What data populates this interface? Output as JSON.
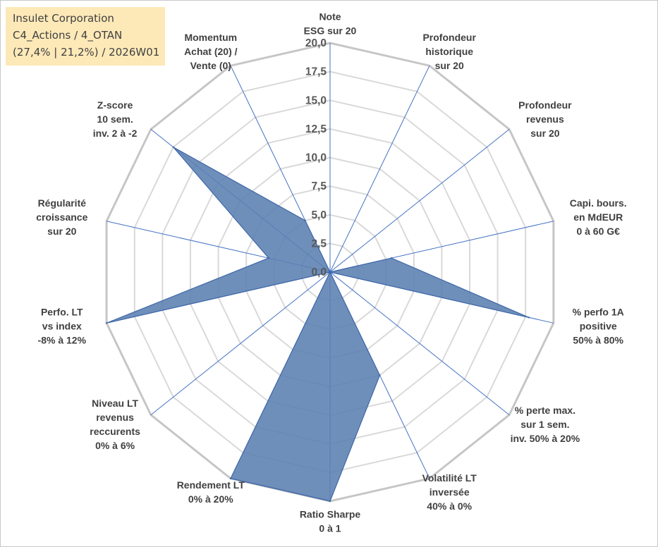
{
  "info_box": {
    "company": "Insulet Corporation",
    "portfolio": "C4_Actions / 4_OTAN",
    "details": "(27,4% | 21,2%) / 2026W01"
  },
  "chart_data": {
    "type": "radar",
    "title": "Insulet Corporation",
    "rmin": 0,
    "rmax": 20,
    "tick_step": 2.5,
    "tick_labels": [
      "0,0",
      "2,5",
      "5,0",
      "7,5",
      "10,0",
      "12,5",
      "15,0",
      "17,5",
      "20,0"
    ],
    "axes": [
      {
        "label": [
          "Note",
          "ESG sur 20"
        ],
        "value": 0
      },
      {
        "label": [
          "Profondeur",
          "historique",
          "sur 20"
        ],
        "value": 0
      },
      {
        "label": [
          "Profondeur",
          "revenus",
          "sur 20"
        ],
        "value": 0
      },
      {
        "label": [
          "Capi. bours.",
          "en MdEUR",
          "0 à 60 G€"
        ],
        "value": 5.5
      },
      {
        "label": [
          "% perfo 1A",
          "positive",
          "50% à 80%"
        ],
        "value": 17.8
      },
      {
        "label": [
          "% perte max.",
          "sur 1 sem.",
          "inv. 50% à 20%"
        ],
        "value": 0
      },
      {
        "label": [
          "Volatilité LT",
          "inversée",
          "40% à 0%"
        ],
        "value": 10.0
      },
      {
        "label": [
          "Ratio Sharpe",
          "0 à 1"
        ],
        "value": 20.0
      },
      {
        "label": [
          "Rendement LT",
          "0% à 20%"
        ],
        "value": 20.0
      },
      {
        "label": [
          "Niveau LT",
          "revenus",
          "reccurents",
          "0% à 6%"
        ],
        "value": 0
      },
      {
        "label": [
          "Perfo. LT",
          "vs index",
          "-8% à 12%"
        ],
        "value": 20.0
      },
      {
        "label": [
          "Régularité",
          "croissance",
          "sur 20"
        ],
        "value": 5.5
      },
      {
        "label": [
          "Z-score",
          "10 sem.",
          "inv. 2 à -2"
        ],
        "value": 17.5
      },
      {
        "label": [
          "Momentum",
          "Achat (20) /",
          "Vente (0)"
        ],
        "value": 5.0
      }
    ],
    "colors": {
      "fill": "#5b7fb2",
      "stroke": "#3e67a8",
      "axis_line": "#4472c4",
      "grid_outer": "#c6c6c6",
      "grid_inner": "#d9d9d9"
    }
  }
}
